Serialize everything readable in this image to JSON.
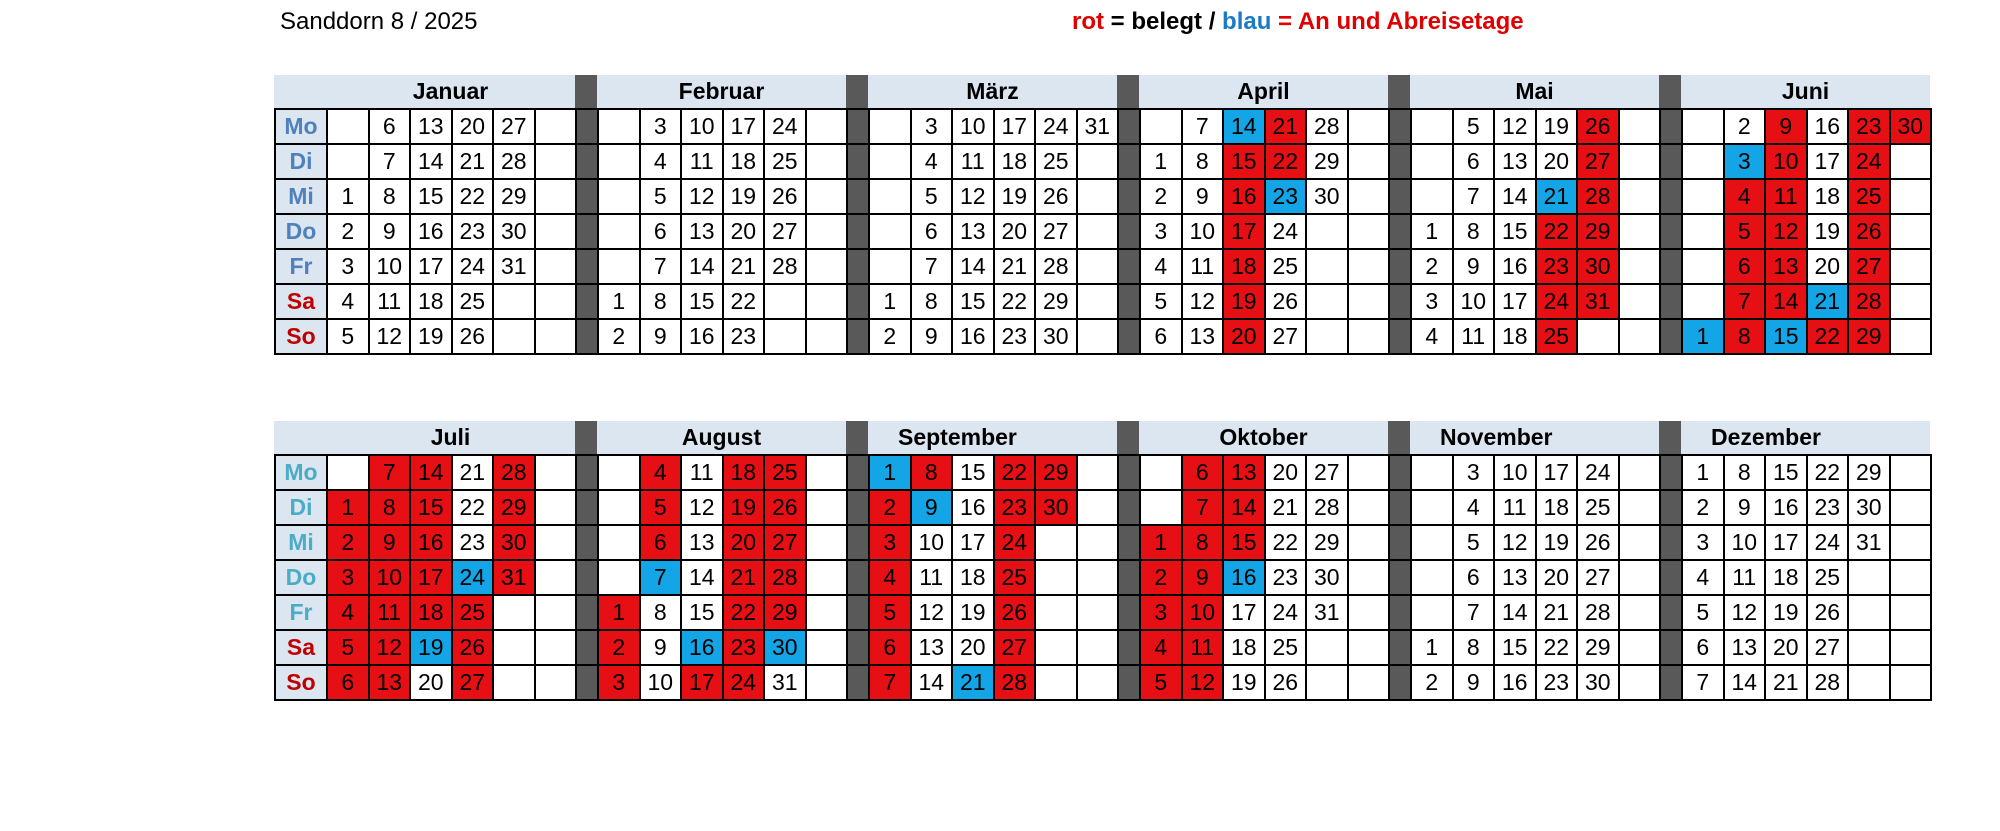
{
  "title": "Sanddorn 8 / 2025",
  "legend": {
    "rot": "rot",
    "t1": " = belegt / ",
    "blau": "blau",
    "t2": " = An und Abreisetage"
  },
  "colors": {
    "belegt": "#e60f14",
    "an_abreise": "#14a5e6",
    "header": "#dce6f1",
    "separator": "#595959"
  },
  "days": [
    "Mo",
    "Di",
    "Mi",
    "Do",
    "Fr",
    "Sa",
    "So"
  ],
  "halves": [
    {
      "day_colors": [
        "#4f81bd",
        "#4f81bd",
        "#4f81bd",
        "#4f81bd",
        "#4f81bd",
        "#c00000",
        "#c00000"
      ],
      "months": [
        {
          "name": "Januar",
          "rows": [
            [
              "",
              "6",
              "13",
              "20",
              "27"
            ],
            [
              "",
              "7",
              "14",
              "21",
              "28"
            ],
            [
              "1",
              "8",
              "15",
              "22",
              "29"
            ],
            [
              "2",
              "9",
              "16",
              "23",
              "30"
            ],
            [
              "3",
              "10",
              "17",
              "24",
              "31"
            ],
            [
              "4",
              "11",
              "18",
              "25",
              ""
            ],
            [
              "5",
              "12",
              "19",
              "26",
              ""
            ]
          ]
        },
        {
          "name": "Februar",
          "rows": [
            [
              "",
              "3",
              "10",
              "17",
              "24"
            ],
            [
              "",
              "4",
              "11",
              "18",
              "25"
            ],
            [
              "",
              "5",
              "12",
              "19",
              "26"
            ],
            [
              "",
              "6",
              "13",
              "20",
              "27"
            ],
            [
              "",
              "7",
              "14",
              "21",
              "28"
            ],
            [
              "1",
              "8",
              "15",
              "22",
              ""
            ],
            [
              "2",
              "9",
              "16",
              "23",
              ""
            ]
          ]
        },
        {
          "name": "März",
          "rows": [
            [
              "",
              "3",
              "10",
              "17",
              "24",
              "31"
            ],
            [
              "",
              "4",
              "11",
              "18",
              "25",
              ""
            ],
            [
              "",
              "5",
              "12",
              "19",
              "26",
              ""
            ],
            [
              "",
              "6",
              "13",
              "20",
              "27",
              ""
            ],
            [
              "",
              "7",
              "14",
              "21",
              "28",
              ""
            ],
            [
              "1",
              "8",
              "15",
              "22",
              "29",
              ""
            ],
            [
              "2",
              "9",
              "16",
              "23",
              "30",
              ""
            ]
          ]
        },
        {
          "name": "April",
          "rows": [
            [
              "",
              "7",
              "14",
              "21",
              "28"
            ],
            [
              "1",
              "8",
              "15",
              "22",
              "29"
            ],
            [
              "2",
              "9",
              "16",
              "23",
              "30"
            ],
            [
              "3",
              "10",
              "17",
              "24",
              ""
            ],
            [
              "4",
              "11",
              "18",
              "25",
              ""
            ],
            [
              "5",
              "12",
              "19",
              "26",
              ""
            ],
            [
              "6",
              "13",
              "20",
              "27",
              ""
            ]
          ]
        },
        {
          "name": "Mai",
          "rows": [
            [
              "",
              "5",
              "12",
              "19",
              "26"
            ],
            [
              "",
              "6",
              "13",
              "20",
              "27"
            ],
            [
              "",
              "7",
              "14",
              "21",
              "28"
            ],
            [
              "1",
              "8",
              "15",
              "22",
              "29"
            ],
            [
              "2",
              "9",
              "16",
              "23",
              "30"
            ],
            [
              "3",
              "10",
              "17",
              "24",
              "31"
            ],
            [
              "4",
              "11",
              "18",
              "25",
              ""
            ]
          ]
        },
        {
          "name": "Juni",
          "rows": [
            [
              "",
              "2",
              "9",
              "16",
              "23",
              "30"
            ],
            [
              "",
              "3",
              "10",
              "17",
              "24",
              ""
            ],
            [
              "",
              "4",
              "11",
              "18",
              "25",
              ""
            ],
            [
              "",
              "5",
              "12",
              "19",
              "26",
              ""
            ],
            [
              "",
              "6",
              "13",
              "20",
              "27",
              ""
            ],
            [
              "",
              "7",
              "14",
              "21",
              "28",
              ""
            ],
            [
              "1",
              "8",
              "15",
              "22",
              "29",
              ""
            ]
          ]
        }
      ]
    },
    {
      "day_colors": [
        "#4bacc6",
        "#4bacc6",
        "#4bacc6",
        "#4bacc6",
        "#4bacc6",
        "#c00000",
        "#c00000"
      ],
      "months": [
        {
          "name": "Juli",
          "rows": [
            [
              "",
              "7",
              "14",
              "21",
              "28"
            ],
            [
              "1",
              "8",
              "15",
              "22",
              "29"
            ],
            [
              "2",
              "9",
              "16",
              "23",
              "30"
            ],
            [
              "3",
              "10",
              "17",
              "24",
              "31"
            ],
            [
              "4",
              "11",
              "18",
              "25",
              ""
            ],
            [
              "5",
              "12",
              "19",
              "26",
              ""
            ],
            [
              "6",
              "13",
              "20",
              "27",
              ""
            ]
          ]
        },
        {
          "name": "August",
          "rows": [
            [
              "",
              "4",
              "11",
              "18",
              "25"
            ],
            [
              "",
              "5",
              "12",
              "19",
              "26"
            ],
            [
              "",
              "6",
              "13",
              "20",
              "27"
            ],
            [
              "",
              "7",
              "14",
              "21",
              "28"
            ],
            [
              "1",
              "8",
              "15",
              "22",
              "29"
            ],
            [
              "2",
              "9",
              "16",
              "23",
              "30"
            ],
            [
              "3",
              "10",
              "17",
              "24",
              "31"
            ]
          ]
        },
        {
          "name": "September",
          "rows": [
            [
              "1",
              "8",
              "15",
              "22",
              "29"
            ],
            [
              "2",
              "9",
              "16",
              "23",
              "30"
            ],
            [
              "3",
              "10",
              "17",
              "24",
              ""
            ],
            [
              "4",
              "11",
              "18",
              "25",
              ""
            ],
            [
              "5",
              "12",
              "19",
              "26",
              ""
            ],
            [
              "6",
              "13",
              "20",
              "27",
              ""
            ],
            [
              "7",
              "14",
              "21",
              "28",
              ""
            ]
          ]
        },
        {
          "name": "Oktober",
          "rows": [
            [
              "",
              "6",
              "13",
              "20",
              "27"
            ],
            [
              "",
              "7",
              "14",
              "21",
              "28"
            ],
            [
              "1",
              "8",
              "15",
              "22",
              "29"
            ],
            [
              "2",
              "9",
              "16",
              "23",
              "30"
            ],
            [
              "3",
              "10",
              "17",
              "24",
              "31"
            ],
            [
              "4",
              "11",
              "18",
              "25",
              ""
            ],
            [
              "5",
              "12",
              "19",
              "26",
              ""
            ]
          ]
        },
        {
          "name": "November",
          "rows": [
            [
              "",
              "3",
              "10",
              "17",
              "24"
            ],
            [
              "",
              "4",
              "11",
              "18",
              "25"
            ],
            [
              "",
              "5",
              "12",
              "19",
              "26"
            ],
            [
              "",
              "6",
              "13",
              "20",
              "27"
            ],
            [
              "",
              "7",
              "14",
              "21",
              "28"
            ],
            [
              "1",
              "8",
              "15",
              "22",
              "29"
            ],
            [
              "2",
              "9",
              "16",
              "23",
              "30"
            ]
          ]
        },
        {
          "name": "Dezember",
          "rows": [
            [
              "1",
              "8",
              "15",
              "22",
              "29"
            ],
            [
              "2",
              "9",
              "16",
              "23",
              "30"
            ],
            [
              "3",
              "10",
              "17",
              "24",
              "31"
            ],
            [
              "4",
              "11",
              "18",
              "25",
              ""
            ],
            [
              "5",
              "12",
              "19",
              "26",
              ""
            ],
            [
              "6",
              "13",
              "20",
              "27",
              ""
            ],
            [
              "7",
              "14",
              "21",
              "28",
              ""
            ]
          ]
        }
      ]
    }
  ],
  "bookings": {
    "April": {
      "belegt": [
        "15",
        "16",
        "17",
        "18",
        "19",
        "20",
        "21",
        "22"
      ],
      "an_abreise": [
        "14",
        "23"
      ]
    },
    "Mai": {
      "belegt": [
        "22",
        "23",
        "24",
        "25",
        "26",
        "27",
        "28",
        "29",
        "30",
        "31"
      ],
      "an_abreise": [
        "21"
      ]
    },
    "Juni": {
      "belegt": [
        "4",
        "5",
        "6",
        "7",
        "8",
        "9",
        "10",
        "11",
        "12",
        "13",
        "14",
        "22",
        "23",
        "24",
        "25",
        "26",
        "27",
        "28",
        "29",
        "30"
      ],
      "an_abreise": [
        "1",
        "3",
        "15",
        "21"
      ]
    },
    "Juli": {
      "belegt": [
        "1",
        "2",
        "3",
        "4",
        "5",
        "6",
        "7",
        "8",
        "9",
        "10",
        "11",
        "12",
        "13",
        "14",
        "15",
        "16",
        "17",
        "18",
        "25",
        "26",
        "27",
        "28",
        "29",
        "30",
        "31"
      ],
      "an_abreise": [
        "19",
        "24"
      ]
    },
    "August": {
      "belegt": [
        "1",
        "2",
        "3",
        "4",
        "5",
        "6",
        "17",
        "18",
        "19",
        "20",
        "21",
        "22",
        "23",
        "24",
        "25",
        "26",
        "27",
        "28",
        "29"
      ],
      "an_abreise": [
        "7",
        "16",
        "30"
      ]
    },
    "September": {
      "belegt": [
        "2",
        "3",
        "4",
        "5",
        "6",
        "7",
        "8",
        "22",
        "23",
        "24",
        "25",
        "26",
        "27",
        "28",
        "29",
        "30"
      ],
      "an_abreise": [
        "1",
        "9",
        "21"
      ]
    },
    "Oktober": {
      "belegt": [
        "1",
        "2",
        "3",
        "4",
        "5",
        "6",
        "7",
        "8",
        "9",
        "10",
        "11",
        "12",
        "13",
        "14",
        "15"
      ],
      "an_abreise": [
        "16"
      ]
    }
  }
}
